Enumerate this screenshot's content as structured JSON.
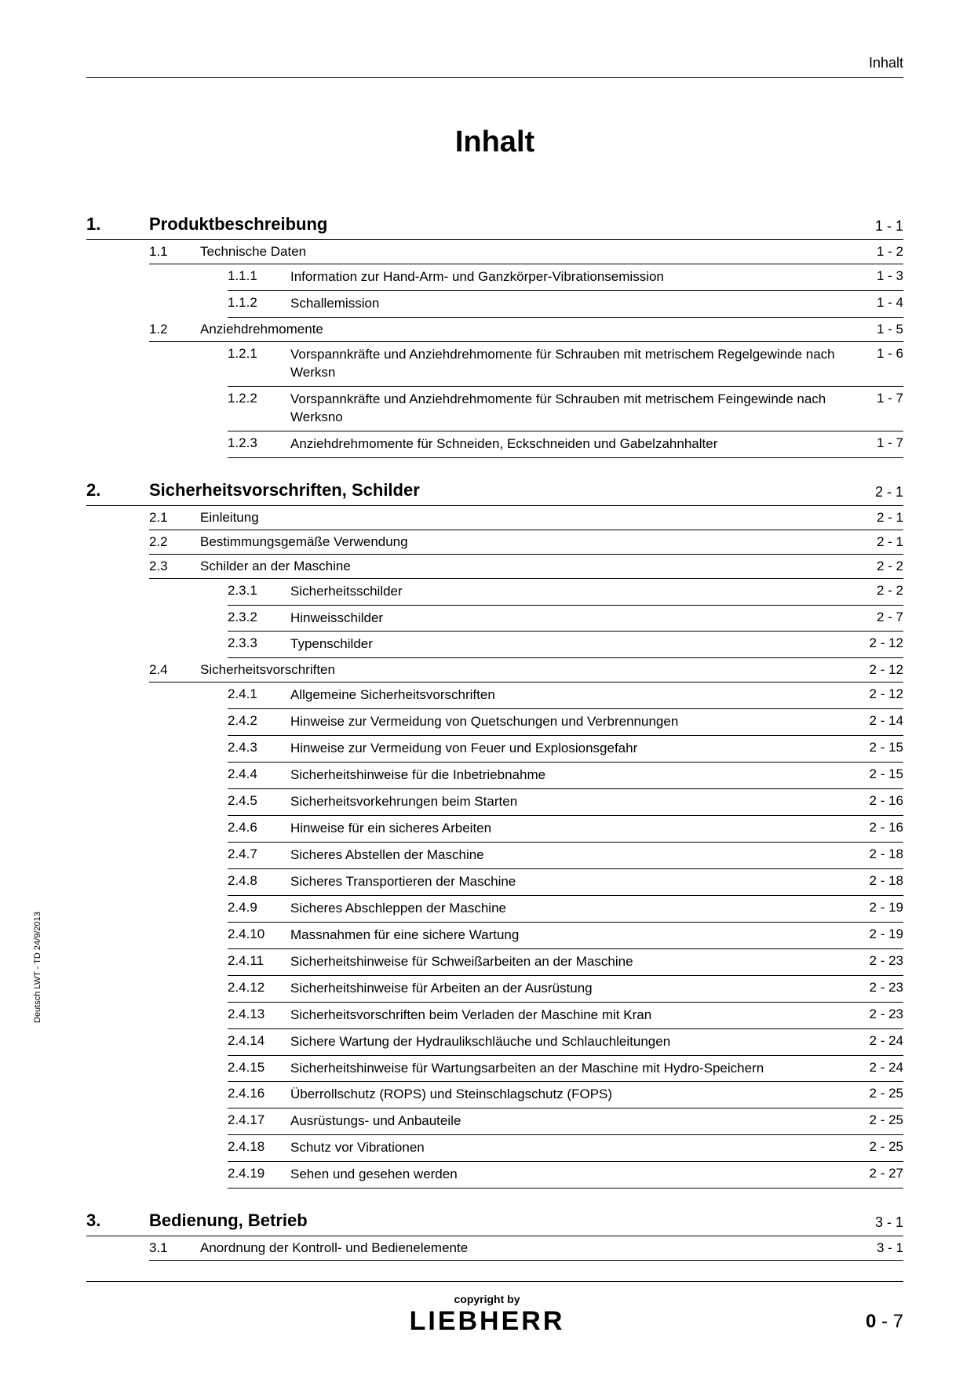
{
  "header": {
    "label": "Inhalt"
  },
  "title": "Inhalt",
  "sideText": "Deutsch  LWT - TD 24/9/2013",
  "footer": {
    "copyright": "copyright by",
    "logo": "LIEBHERR",
    "pageBold": "0",
    "pageRest": " - 7"
  },
  "sections": [
    {
      "num": "1.",
      "title": "Produktbeschreibung",
      "page": "1 - 1",
      "subs": [
        {
          "num": "1.1",
          "title": "Technische Daten",
          "page": "1 - 2",
          "subsubs": [
            {
              "num": "1.1.1",
              "title": "Information zur Hand-Arm- und Ganzkörper-Vibrationsemission",
              "page": "1 - 3"
            },
            {
              "num": "1.1.2",
              "title": "Schallemission",
              "page": "1 - 4"
            }
          ]
        },
        {
          "num": "1.2",
          "title": "Anziehdrehmomente",
          "page": "1 - 5",
          "subsubs": [
            {
              "num": "1.2.1",
              "title": "Vorspannkräfte und Anziehdrehmomente für Schrauben mit metrischem Regelgewinde nach Werksn",
              "page": "1 - 6"
            },
            {
              "num": "1.2.2",
              "title": "Vorspannkräfte und Anziehdrehmomente für Schrauben mit metrischem Feingewinde nach Werksno",
              "page": "1 - 7"
            },
            {
              "num": "1.2.3",
              "title": "Anziehdrehmomente für Schneiden, Eckschneiden und Gabelzahnhalter",
              "page": "1 - 7"
            }
          ]
        }
      ]
    },
    {
      "num": "2.",
      "title": "Sicherheitsvorschriften, Schilder",
      "page": "2 - 1",
      "subs": [
        {
          "num": "2.1",
          "title": "Einleitung",
          "page": "2 - 1",
          "subsubs": []
        },
        {
          "num": "2.2",
          "title": "Bestimmungsgemäße Verwendung",
          "page": "2 - 1",
          "subsubs": []
        },
        {
          "num": "2.3",
          "title": "Schilder an der Maschine",
          "page": "2 - 2",
          "subsubs": [
            {
              "num": "2.3.1",
              "title": "Sicherheitsschilder",
              "page": "2 - 2"
            },
            {
              "num": "2.3.2",
              "title": "Hinweisschilder",
              "page": "2 - 7"
            },
            {
              "num": "2.3.3",
              "title": "Typenschilder",
              "page": "2 - 12"
            }
          ]
        },
        {
          "num": "2.4",
          "title": "Sicherheitsvorschriften",
          "page": "2 - 12",
          "subsubs": [
            {
              "num": "2.4.1",
              "title": "Allgemeine Sicherheitsvorschriften",
              "page": "2 - 12"
            },
            {
              "num": "2.4.2",
              "title": "Hinweise zur Vermeidung von Quetschungen und Verbrennungen",
              "page": "2 - 14"
            },
            {
              "num": "2.4.3",
              "title": "Hinweise zur Vermeidung von Feuer und Explosionsgefahr",
              "page": "2 - 15"
            },
            {
              "num": "2.4.4",
              "title": "Sicherheitshinweise für die Inbetriebnahme",
              "page": "2 - 15"
            },
            {
              "num": "2.4.5",
              "title": "Sicherheitsvorkehrungen beim Starten",
              "page": "2 - 16"
            },
            {
              "num": "2.4.6",
              "title": "Hinweise für ein sicheres Arbeiten",
              "page": "2 - 16"
            },
            {
              "num": "2.4.7",
              "title": "Sicheres Abstellen der Maschine",
              "page": "2 - 18"
            },
            {
              "num": "2.4.8",
              "title": "Sicheres Transportieren der Maschine",
              "page": "2 - 18"
            },
            {
              "num": "2.4.9",
              "title": "Sicheres Abschleppen der Maschine",
              "page": "2 - 19"
            },
            {
              "num": "2.4.10",
              "title": "Massnahmen für eine sichere Wartung",
              "page": "2 - 19"
            },
            {
              "num": "2.4.11",
              "title": "Sicherheitshinweise für Schweißarbeiten an der Maschine",
              "page": "2 - 23"
            },
            {
              "num": "2.4.12",
              "title": "Sicherheitshinweise für Arbeiten an der Ausrüstung",
              "page": "2 - 23"
            },
            {
              "num": "2.4.13",
              "title": "Sicherheitsvorschriften beim Verladen der Maschine mit Kran",
              "page": "2 - 23"
            },
            {
              "num": "2.4.14",
              "title": "Sichere Wartung der Hydraulikschläuche und Schlauchleitungen",
              "page": "2 - 24"
            },
            {
              "num": "2.4.15",
              "title": "Sicherheitshinweise für Wartungsarbeiten an der Maschine mit Hydro-Speichern",
              "page": "2 - 24"
            },
            {
              "num": "2.4.16",
              "title": "Überrollschutz (ROPS) und Steinschlagschutz (FOPS)",
              "page": "2 - 25"
            },
            {
              "num": "2.4.17",
              "title": "Ausrüstungs- und Anbauteile",
              "page": "2 - 25"
            },
            {
              "num": "2.4.18",
              "title": "Schutz vor Vibrationen",
              "page": "2 - 25"
            },
            {
              "num": "2.4.19",
              "title": "Sehen und gesehen werden",
              "page": "2 - 27"
            }
          ]
        }
      ]
    },
    {
      "num": "3.",
      "title": "Bedienung, Betrieb",
      "page": "3 - 1",
      "subs": [
        {
          "num": "3.1",
          "title": "Anordnung der Kontroll- und Bedienelemente",
          "page": "3 - 1",
          "subsubs": []
        }
      ]
    }
  ]
}
